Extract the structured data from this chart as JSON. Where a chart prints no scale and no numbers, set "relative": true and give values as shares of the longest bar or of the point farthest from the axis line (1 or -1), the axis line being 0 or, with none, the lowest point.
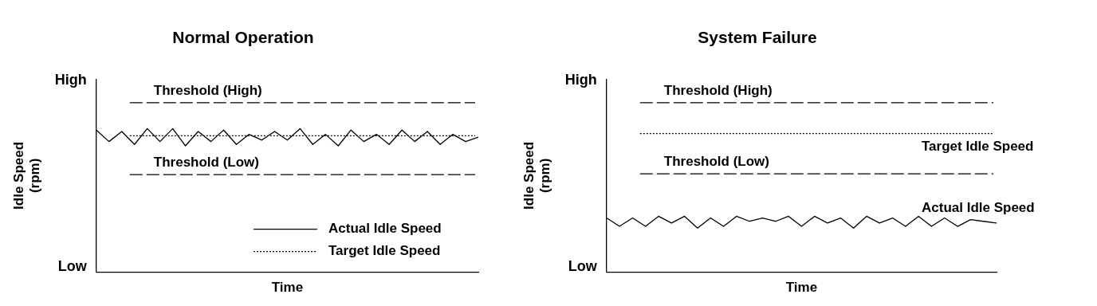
{
  "chart_data": [
    {
      "type": "line",
      "title": "Normal Operation",
      "xlabel": "Time",
      "ylabel": "Idle Speed (rpm)",
      "categories": [
        null,
        null,
        null,
        null,
        null,
        null,
        null,
        null,
        null,
        null,
        null,
        null,
        null,
        null,
        null,
        null,
        null,
        null,
        null,
        null,
        null,
        null,
        null,
        null,
        null,
        null,
        null,
        null,
        null,
        null,
        null
      ],
      "series": [
        {
          "name": "Actual Idle Speed",
          "color": "#000000",
          "line_style": "solid",
          "values": [
            0.99,
            0.91,
            0.98,
            0.89,
            1,
            0.91,
            1,
            0.88,
            0.98,
            0.91,
            0.99,
            0.89,
            0.96,
            0.92,
            0.98,
            0.92,
            1,
            0.89,
            0.96,
            0.88,
            0.99,
            0.91,
            0.96,
            0.89,
            0.99,
            0.91,
            0.98,
            0.89,
            0.96,
            0.91,
            0.94
          ]
        }
      ],
      "ref_lines": [
        {
          "axis": "y",
          "value": 1.18,
          "label": "Threshold (High)",
          "line_style": "dashed",
          "color": "#000000"
        },
        {
          "axis": "y",
          "value": 0.95,
          "label": "Target Idle Speed",
          "line_style": "dotted",
          "color": "#000000"
        },
        {
          "axis": "y",
          "value": 0.68,
          "label": "Threshold (Low)",
          "line_style": "dashed",
          "color": "#000000"
        }
      ],
      "annotations": [
        "High",
        "Low"
      ],
      "relative": true,
      "tick_labels": false,
      "grid": false,
      "legend": "bottom right",
      "marker": "none"
    },
    {
      "type": "line",
      "title": "System Failure",
      "xlabel": "Time",
      "ylabel": "Idle Speed (rpm)",
      "categories": [
        null,
        null,
        null,
        null,
        null,
        null,
        null,
        null,
        null,
        null,
        null,
        null,
        null,
        null,
        null,
        null,
        null,
        null,
        null,
        null,
        null,
        null,
        null,
        null,
        null,
        null,
        null,
        null,
        null,
        null,
        null
      ],
      "series": [
        {
          "name": "Actual Idle Speed",
          "color": "#000000",
          "line_style": "solid",
          "values": [
            0.97,
            0.82,
            0.97,
            0.82,
            1,
            0.88,
            1,
            0.79,
            0.97,
            0.82,
            1,
            0.91,
            0.97,
            0.91,
            1,
            0.82,
            1,
            0.88,
            0.97,
            0.79,
            1,
            0.88,
            0.97,
            0.82,
            1,
            0.82,
            0.97,
            0.82,
            0.94,
            0.91,
            0.88
          ]
        }
      ],
      "ref_lines": [
        {
          "axis": "y",
          "value": 3.03,
          "label": "Threshold (High)",
          "line_style": "dashed",
          "color": "#000000"
        },
        {
          "axis": "y",
          "value": 2.48,
          "label": "Target Idle Speed",
          "line_style": "dotted",
          "color": "#000000"
        },
        {
          "axis": "y",
          "value": 1.76,
          "label": "Threshold (Low)",
          "line_style": "dashed",
          "color": "#000000"
        }
      ],
      "annotations": [
        "High",
        "Low"
      ],
      "relative": true,
      "tick_labels": false,
      "grid": false,
      "legend": false,
      "marker": "none"
    }
  ]
}
